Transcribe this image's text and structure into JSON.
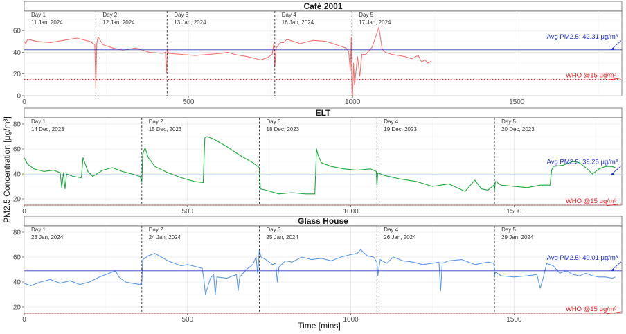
{
  "figure": {
    "xlabel": "Time [mins]",
    "ylabel": "PM2.5 Concentration [μg/m³]"
  },
  "colors": {
    "avg_line": "#2a3dbf",
    "who_line": "#e41a1c",
    "avg_text": "#1f2fd6",
    "who_text": "#e41a1c"
  },
  "chart_data": [
    {
      "type": "line",
      "title": "Café 2001",
      "color": "#f07470",
      "xlim": [
        0,
        1820
      ],
      "ylim": [
        0,
        78
      ],
      "x_ticks": [
        0,
        500,
        1000,
        1500
      ],
      "y_ticks": [
        0,
        20,
        40,
        60
      ],
      "avg": 42.31,
      "avg_label": "Avg PM2.5: 42.31 μg/m³",
      "who": 15,
      "who_label": "WHO @15 μg/m³",
      "day_dividers": [
        218,
        435,
        763,
        998
      ],
      "days": [
        {
          "day": "Day 1",
          "date": "11 Jan, 2024",
          "x": 0
        },
        {
          "day": "Day 2",
          "date": "12 Jan, 2024",
          "x": 218
        },
        {
          "day": "Day 3",
          "date": "13 Jan, 2024",
          "x": 435
        },
        {
          "day": "Day 4",
          "date": "16 Jan, 2024",
          "x": 763
        },
        {
          "day": "Day 5",
          "date": "17 Jan, 2024",
          "x": 998
        }
      ],
      "series": [
        {
          "x": [
            0,
            5,
            10,
            40,
            80,
            120,
            160,
            200,
            215,
            218,
            221,
            225,
            240,
            270,
            300,
            340,
            380,
            420,
            430,
            433,
            436,
            440,
            480,
            520,
            560,
            600,
            620,
            640,
            680,
            720,
            740,
            755,
            760,
            763,
            767,
            780,
            790,
            800,
            840,
            880,
            920,
            950,
            980,
            988,
            993,
            996,
            998,
            1000,
            1003,
            1006,
            1015,
            1022,
            1028,
            1040,
            1060,
            1080,
            1090,
            1100,
            1120,
            1140,
            1160,
            1180,
            1200,
            1210,
            1220,
            1230,
            1240
          ],
          "y": [
            50,
            48,
            52,
            50,
            49,
            51,
            53,
            50,
            47,
            7,
            49,
            54,
            47,
            44,
            42,
            44,
            40,
            39,
            40,
            21,
            43,
            39,
            38,
            37,
            38,
            39,
            40,
            38,
            36,
            33,
            35,
            38,
            48,
            27,
            44,
            49,
            49,
            52,
            48,
            51,
            50,
            47,
            44,
            41,
            23,
            54,
            5,
            0,
            30,
            10,
            36,
            18,
            38,
            38,
            45,
            63,
            43,
            40,
            38,
            37,
            36,
            34,
            37,
            31,
            33,
            30,
            32
          ]
        }
      ]
    },
    {
      "type": "line",
      "title": "ELT",
      "color": "#1aab3a",
      "xlim": [
        0,
        1830
      ],
      "ylim": [
        15,
        85
      ],
      "x_ticks": [
        0,
        500,
        1000,
        1500
      ],
      "y_ticks": [
        20,
        40,
        60,
        80
      ],
      "avg": 39.25,
      "avg_label": "Avg PM2.5: 39.25 μg/m³",
      "who": 15,
      "who_label": "WHO @15 μg/m³",
      "day_dividers": [
        360,
        720,
        1080,
        1440
      ],
      "days": [
        {
          "day": "Day 1",
          "date": "14 Dec, 2023",
          "x": 0
        },
        {
          "day": "Day 2",
          "date": "15 Dec, 2023",
          "x": 360
        },
        {
          "day": "Day 3",
          "date": "18 Dec, 2023",
          "x": 720
        },
        {
          "day": "Day 4",
          "date": "19 Dec, 2023",
          "x": 1080
        },
        {
          "day": "Day 5",
          "date": "20 Dec, 2023",
          "x": 1440
        }
      ],
      "series": [
        {
          "x": [
            0,
            10,
            30,
            60,
            90,
            110,
            115,
            120,
            125,
            130,
            150,
            175,
            180,
            195,
            210,
            240,
            270,
            300,
            330,
            355,
            360,
            363,
            370,
            380,
            400,
            440,
            480,
            520,
            548,
            553,
            560,
            580,
            620,
            660,
            700,
            715,
            720,
            723,
            740,
            780,
            820,
            860,
            890,
            895,
            900,
            910,
            940,
            980,
            1020,
            1060,
            1078,
            1080,
            1083,
            1100,
            1150,
            1200,
            1250,
            1300,
            1350,
            1380,
            1400,
            1420,
            1438,
            1440,
            1443,
            1460,
            1500,
            1540,
            1580,
            1610,
            1615,
            1620,
            1650,
            1680,
            1700,
            1720,
            1740,
            1760,
            1780,
            1800,
            1810
          ],
          "y": [
            53,
            48,
            44,
            42,
            43,
            41,
            29,
            41,
            28,
            40,
            38,
            37,
            53,
            42,
            38,
            43,
            45,
            42,
            40,
            38,
            34,
            56,
            61,
            53,
            46,
            41,
            37,
            34,
            33,
            69,
            70,
            68,
            62,
            55,
            49,
            46,
            45,
            28,
            27,
            24,
            25,
            24,
            24,
            60,
            55,
            49,
            46,
            44,
            43,
            44,
            42,
            31,
            41,
            39,
            36,
            34,
            30,
            32,
            26,
            35,
            28,
            27,
            31,
            27,
            34,
            31,
            30,
            29,
            31,
            31,
            43,
            46,
            47,
            50,
            49,
            45,
            40,
            44,
            46,
            46,
            45
          ]
        }
      ]
    },
    {
      "type": "line",
      "title": "Glass House",
      "color": "#5b98ea",
      "xlim": [
        0,
        1830
      ],
      "ylim": [
        15,
        85
      ],
      "x_ticks": [
        0,
        500,
        1000,
        1500
      ],
      "y_ticks": [
        20,
        40,
        60,
        80
      ],
      "avg": 49.01,
      "avg_label": "Avg PM2.5: 49.01 μg/m³",
      "who": 15,
      "who_label": "WHO @15 μg/m³",
      "day_dividers": [
        360,
        720,
        1080,
        1440
      ],
      "days": [
        {
          "day": "Day 1",
          "date": "23 Jan, 2024",
          "x": 0
        },
        {
          "day": "Day 2",
          "date": "24 Jan, 2024",
          "x": 360
        },
        {
          "day": "Day 3",
          "date": "25 Jan, 2024",
          "x": 720
        },
        {
          "day": "Day 4",
          "date": "26 Jan, 2024",
          "x": 1080
        },
        {
          "day": "Day 5",
          "date": "29 Jan, 2024",
          "x": 1440
        }
      ],
      "series": [
        {
          "x": [
            0,
            20,
            50,
            80,
            110,
            140,
            170,
            200,
            230,
            260,
            280,
            290,
            310,
            330,
            355,
            360,
            363,
            380,
            400,
            420,
            440,
            460,
            480,
            500,
            530,
            545,
            550,
            555,
            570,
            580,
            585,
            590,
            620,
            650,
            655,
            660,
            680,
            700,
            710,
            715,
            720,
            725,
            740,
            760,
            770,
            775,
            780,
            800,
            820,
            850,
            880,
            910,
            940,
            970,
            1000,
            1020,
            1030,
            1050,
            1070,
            1080,
            1083,
            1090,
            1110,
            1130,
            1160,
            1190,
            1220,
            1250,
            1270,
            1275,
            1280,
            1300,
            1340,
            1380,
            1420,
            1438,
            1440,
            1443,
            1460,
            1500,
            1540,
            1570,
            1580,
            1590,
            1600,
            1620,
            1640,
            1660,
            1680,
            1700,
            1720,
            1740,
            1760,
            1780,
            1800,
            1810
          ],
          "y": [
            39,
            37,
            40,
            42,
            39,
            41,
            38,
            40,
            44,
            47,
            49,
            44,
            40,
            39,
            38,
            40,
            58,
            61,
            63,
            60,
            57,
            55,
            53,
            54,
            52,
            51,
            42,
            30,
            43,
            46,
            30,
            44,
            43,
            46,
            33,
            44,
            50,
            54,
            60,
            46,
            66,
            60,
            58,
            54,
            55,
            40,
            52,
            57,
            56,
            60,
            58,
            59,
            57,
            60,
            62,
            63,
            66,
            61,
            60,
            56,
            45,
            58,
            55,
            60,
            57,
            56,
            54,
            55,
            56,
            33,
            55,
            57,
            58,
            54,
            56,
            55,
            45,
            48,
            45,
            44,
            45,
            46,
            35,
            44,
            55,
            53,
            47,
            49,
            46,
            45,
            47,
            45,
            44,
            44,
            43,
            44
          ]
        }
      ]
    }
  ]
}
